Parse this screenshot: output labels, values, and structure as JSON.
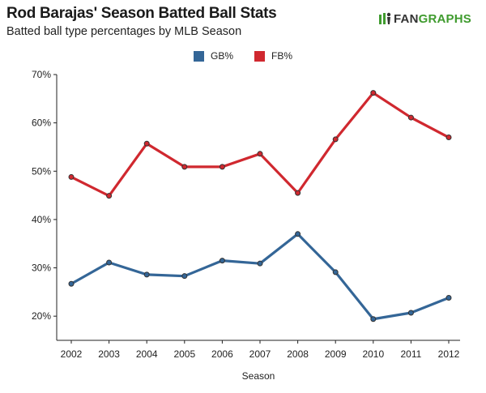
{
  "header": {
    "title": "Rod Barajas' Season Batted Ball Stats",
    "subtitle": "Batted ball type percentages by MLB Season",
    "logo_fan": "FAN",
    "logo_graphs": "GRAPHS"
  },
  "colors": {
    "gb": "#346697",
    "fb": "#d0282f",
    "axis": "#222222",
    "brand_green": "#3f9b2e"
  },
  "chart_data": {
    "type": "line",
    "xlabel": "Season",
    "ylabel": "",
    "categories": [
      "2002",
      "2003",
      "2004",
      "2005",
      "2006",
      "2007",
      "2008",
      "2009",
      "2010",
      "2011",
      "2012"
    ],
    "ylim": [
      15,
      70
    ],
    "yticks": [
      20,
      30,
      40,
      50,
      60,
      70
    ],
    "ytick_labels": [
      "20%",
      "30%",
      "40%",
      "50%",
      "60%",
      "70%"
    ],
    "grid": false,
    "legend_position": "top-center",
    "series": [
      {
        "name": "GB%",
        "color": "#346697",
        "values": [
          26.7,
          31.1,
          28.6,
          28.3,
          31.5,
          30.9,
          37.0,
          29.1,
          19.4,
          20.7,
          23.8
        ]
      },
      {
        "name": "FB%",
        "color": "#d0282f",
        "values": [
          48.8,
          44.9,
          55.7,
          50.9,
          50.9,
          53.6,
          45.5,
          56.6,
          66.2,
          61.1,
          57.0
        ]
      }
    ]
  }
}
